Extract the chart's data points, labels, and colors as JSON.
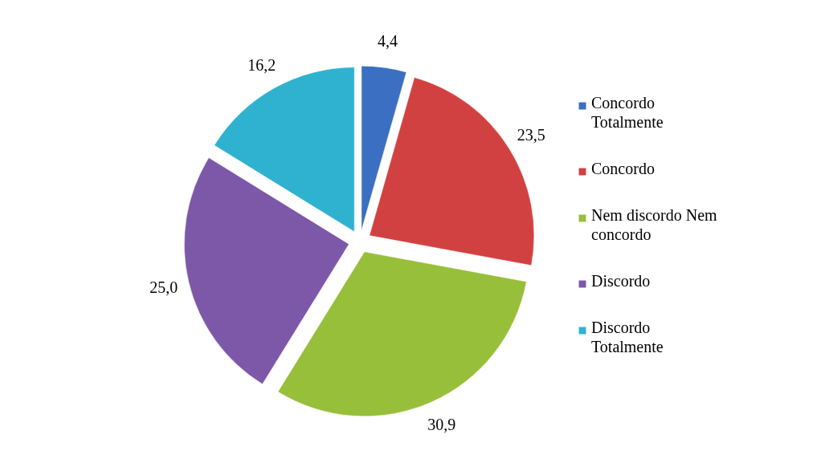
{
  "chart_data": {
    "type": "pie",
    "categories": [
      "Concordo Totalmente",
      "Concordo",
      "Nem discordo  Nem concordo",
      "Discordo",
      "Discordo Totalmente"
    ],
    "values": [
      4.4,
      23.5,
      30.9,
      25.0,
      16.2
    ],
    "colors": [
      "#3b6fc2",
      "#d24141",
      "#97bf3a",
      "#7d57a8",
      "#2fb2cf"
    ],
    "value_labels": [
      "4,4",
      "23,5",
      "30,9",
      "25,0",
      "16,2"
    ],
    "legend": "right"
  }
}
